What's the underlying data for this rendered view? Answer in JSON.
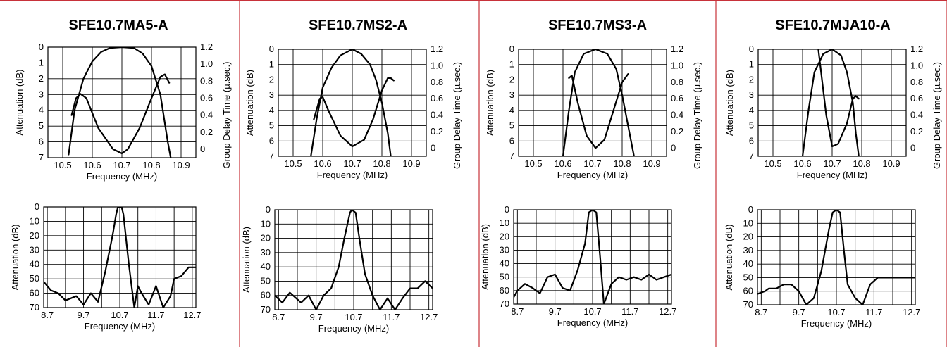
{
  "chart_data": [
    {
      "panel": 1,
      "title": "SFE10.7MA5-A",
      "upper": {
        "type": "line",
        "xlabel": "Frequency (MHz)",
        "ylabel": "Attenuation (dB)",
        "ylabel_right": "Group Delay Time (µ.sec.)",
        "x_ticks": [
          "10.5",
          "10.6",
          "10.7",
          "10.8",
          "10.9"
        ],
        "y_ticks": [
          "0",
          "1",
          "2",
          "3",
          "4",
          "5",
          "6",
          "7"
        ],
        "y2_ticks": [
          "1.2",
          "1.0",
          "0.8",
          "0.6",
          "0.4",
          "0.2",
          "0"
        ],
        "xlim": [
          10.45,
          10.95
        ],
        "ylim": [
          0,
          7
        ],
        "y2lim": [
          -0.1,
          1.2
        ],
        "series": [
          {
            "axis": "attenuation",
            "x": [
              10.52,
              10.54,
              10.57,
              10.6,
              10.63,
              10.66,
              10.7,
              10.74,
              10.77,
              10.8,
              10.83,
              10.855,
              10.865
            ],
            "y": [
              6.8,
              4.0,
              2.0,
              0.9,
              0.3,
              0.05,
              0.0,
              0.05,
              0.4,
              1.2,
              3.0,
              6.0,
              7.0
            ]
          },
          {
            "axis": "group_delay",
            "x": [
              10.53,
              10.545,
              10.56,
              10.58,
              10.62,
              10.67,
              10.7,
              10.72,
              10.76,
              10.8,
              10.83,
              10.845,
              10.86
            ],
            "y": [
              0.4,
              0.6,
              0.65,
              0.6,
              0.25,
              0.0,
              -0.05,
              0.0,
              0.25,
              0.6,
              0.85,
              0.88,
              0.78
            ]
          }
        ]
      },
      "lower": {
        "type": "line",
        "xlabel": "Frequency (MHz)",
        "ylabel": "Attenuation (dB)",
        "x_ticks": [
          "8.7",
          "9.7",
          "10.7",
          "11.7",
          "12.7"
        ],
        "y_ticks": [
          "0",
          "10",
          "20",
          "30",
          "40",
          "50",
          "60",
          "70"
        ],
        "xlim": [
          8.6,
          12.8
        ],
        "ylim": [
          0,
          70
        ],
        "series": [
          {
            "x": [
              8.6,
              8.8,
              9.0,
              9.2,
              9.5,
              9.7,
              9.9,
              10.1,
              10.3,
              10.5,
              10.6,
              10.65,
              10.75,
              10.8,
              10.95,
              11.1,
              11.2,
              11.3,
              11.5,
              11.7,
              11.9,
              12.1,
              12.2,
              12.4,
              12.6,
              12.8
            ],
            "y": [
              52,
              58,
              60,
              65,
              62,
              68,
              60,
              66,
              45,
              20,
              5,
              0,
              0,
              5,
              40,
              70,
              55,
              60,
              68,
              55,
              70,
              62,
              50,
              48,
              42,
              42
            ]
          }
        ]
      }
    },
    {
      "panel": 2,
      "title": "SFE10.7MS2-A",
      "upper": {
        "type": "line",
        "xlabel": "Frequency (MHz)",
        "ylabel": "Attenuation (dB)",
        "ylabel_right": "Group Delay Time (µ.sec.)",
        "x_ticks": [
          "10.5",
          "10.6",
          "10.7",
          "10.8",
          "10.9"
        ],
        "y_ticks": [
          "0",
          "1",
          "2",
          "3",
          "4",
          "5",
          "6",
          "7"
        ],
        "y2_ticks": [
          "1.2",
          "1.0",
          "0.8",
          "0.6",
          "0.4",
          "0.2",
          "0"
        ],
        "xlim": [
          10.45,
          10.95
        ],
        "ylim": [
          0,
          7
        ],
        "y2lim": [
          -0.1,
          1.2
        ],
        "series": [
          {
            "axis": "attenuation",
            "x": [
              10.56,
              10.58,
              10.6,
              10.63,
              10.66,
              10.7,
              10.73,
              10.76,
              10.78,
              10.8,
              10.82,
              10.83
            ],
            "y": [
              7.0,
              4.5,
              2.5,
              1.2,
              0.4,
              0.0,
              0.3,
              1.0,
              2.0,
              3.5,
              5.5,
              7.0
            ]
          },
          {
            "axis": "group_delay",
            "x": [
              10.57,
              10.59,
              10.6,
              10.62,
              10.66,
              10.7,
              10.74,
              10.77,
              10.8,
              10.82,
              10.83,
              10.84
            ],
            "y": [
              0.35,
              0.6,
              0.62,
              0.45,
              0.15,
              0.02,
              0.1,
              0.35,
              0.7,
              0.85,
              0.85,
              0.82
            ]
          }
        ]
      },
      "lower": {
        "type": "line",
        "xlabel": "Frequency (MHz)",
        "ylabel": "Attenuation (dB)",
        "x_ticks": [
          "8.7",
          "9.7",
          "10.7",
          "11.7",
          "12.7"
        ],
        "y_ticks": [
          "0",
          "10",
          "20",
          "30",
          "40",
          "50",
          "60",
          "70"
        ],
        "xlim": [
          8.6,
          12.8
        ],
        "ylim": [
          0,
          70
        ],
        "series": [
          {
            "x": [
              8.6,
              8.8,
              9.0,
              9.3,
              9.5,
              9.7,
              9.9,
              10.1,
              10.3,
              10.45,
              10.6,
              10.65,
              10.75,
              10.85,
              11.0,
              11.2,
              11.4,
              11.6,
              11.8,
              12.0,
              12.2,
              12.4,
              12.6,
              12.8
            ],
            "y": [
              60,
              65,
              58,
              65,
              60,
              70,
              60,
              55,
              40,
              20,
              2,
              0,
              2,
              20,
              45,
              60,
              70,
              62,
              70,
              62,
              55,
              55,
              50,
              55
            ]
          }
        ]
      }
    },
    {
      "panel": 3,
      "title": "SFE10.7MS3-A",
      "upper": {
        "type": "line",
        "xlabel": "Frequency (MHz)",
        "ylabel": "Attenuation (dB)",
        "ylabel_right": "Group Delay Time (µ.sec.)",
        "x_ticks": [
          "10.5",
          "10.6",
          "10.7",
          "10.8",
          "10.9"
        ],
        "y_ticks": [
          "0",
          "1",
          "2",
          "3",
          "4",
          "5",
          "6",
          "7"
        ],
        "y2_ticks": [
          "1.2",
          "1.0",
          "0.8",
          "0.6",
          "0.4",
          "0.2",
          "0"
        ],
        "xlim": [
          10.45,
          10.95
        ],
        "ylim": [
          0,
          7
        ],
        "y2lim": [
          -0.1,
          1.2
        ],
        "series": [
          {
            "axis": "attenuation",
            "x": [
              10.6,
              10.62,
              10.64,
              10.67,
              10.71,
              10.75,
              10.78,
              10.8,
              10.82,
              10.84
            ],
            "y": [
              7.0,
              4.0,
              1.5,
              0.3,
              0.0,
              0.3,
              1.3,
              3.0,
              5.0,
              7.0
            ]
          },
          {
            "axis": "group_delay",
            "x": [
              10.62,
              10.63,
              10.65,
              10.68,
              10.71,
              10.74,
              10.77,
              10.8,
              10.82
            ],
            "y": [
              0.85,
              0.88,
              0.55,
              0.15,
              0.0,
              0.1,
              0.45,
              0.8,
              0.9
            ]
          }
        ]
      },
      "lower": {
        "type": "line",
        "xlabel": "Frequency (MHz)",
        "ylabel": "Attenuation (dB)",
        "x_ticks": [
          "8.7",
          "9.7",
          "10.7",
          "11.7",
          "12.7"
        ],
        "y_ticks": [
          "0",
          "10",
          "20",
          "30",
          "40",
          "50",
          "60",
          "70"
        ],
        "xlim": [
          8.6,
          12.8
        ],
        "ylim": [
          0,
          70
        ],
        "series": [
          {
            "x": [
              8.6,
              8.7,
              8.9,
              9.1,
              9.3,
              9.5,
              9.7,
              9.9,
              10.1,
              10.3,
              10.5,
              10.6,
              10.7,
              10.8,
              10.9,
              11.0,
              11.2,
              11.4,
              11.6,
              11.8,
              12.0,
              12.2,
              12.4,
              12.6,
              12.8
            ],
            "y": [
              65,
              60,
              55,
              58,
              62,
              50,
              48,
              58,
              60,
              45,
              25,
              2,
              0,
              2,
              35,
              70,
              55,
              50,
              52,
              50,
              52,
              48,
              52,
              50,
              48
            ]
          }
        ]
      }
    },
    {
      "panel": 4,
      "title": "SFE10.7MJA10-A",
      "upper": {
        "type": "line",
        "xlabel": "Frequency (MHz)",
        "ylabel": "Attenuation (dB)",
        "ylabel_right": "Group Delay Time (µ.sec.)",
        "x_ticks": [
          "10.5",
          "10.6",
          "10.7",
          "10.8",
          "10.9"
        ],
        "y_ticks": [
          "0",
          "1",
          "2",
          "3",
          "4",
          "5",
          "6",
          "7"
        ],
        "y2_ticks": [
          "1.2",
          "1.0",
          "0.8",
          "0.6",
          "0.4",
          "0.2",
          "0"
        ],
        "xlim": [
          10.45,
          10.95
        ],
        "ylim": [
          0,
          7
        ],
        "y2lim": [
          -0.1,
          1.2
        ],
        "series": [
          {
            "axis": "attenuation",
            "x": [
              10.6,
              10.62,
              10.64,
              10.67,
              10.7,
              10.73,
              10.75,
              10.77,
              10.78,
              10.79
            ],
            "y": [
              7.0,
              4.0,
              1.5,
              0.3,
              0.0,
              0.4,
              1.5,
              3.5,
              5.5,
              7.0
            ]
          },
          {
            "axis": "group_delay",
            "x": [
              10.65,
              10.66,
              10.68,
              10.7,
              10.72,
              10.75,
              10.77,
              10.78,
              10.79
            ],
            "y": [
              1.3,
              1.0,
              0.4,
              0.02,
              0.05,
              0.3,
              0.6,
              0.63,
              0.6
            ]
          }
        ]
      },
      "lower": {
        "type": "line",
        "xlabel": "Frequency (MHz)",
        "ylabel": "Attenuation (dB)",
        "x_ticks": [
          "8.7",
          "9.7",
          "10.7",
          "11.7",
          "12.7"
        ],
        "y_ticks": [
          "0",
          "10",
          "20",
          "30",
          "40",
          "50",
          "60",
          "70"
        ],
        "xlim": [
          8.6,
          12.8
        ],
        "ylim": [
          0,
          70
        ],
        "series": [
          {
            "x": [
              8.6,
              8.8,
              8.9,
              9.1,
              9.3,
              9.5,
              9.7,
              9.9,
              10.1,
              10.3,
              10.5,
              10.6,
              10.7,
              10.8,
              10.9,
              11.0,
              11.2,
              11.4,
              11.6,
              11.8,
              12.0,
              12.2,
              12.5,
              12.8
            ],
            "y": [
              62,
              60,
              58,
              58,
              55,
              55,
              60,
              70,
              65,
              45,
              15,
              2,
              0,
              2,
              30,
              55,
              65,
              70,
              55,
              50,
              50,
              50,
              50,
              50
            ]
          }
        ]
      }
    }
  ]
}
